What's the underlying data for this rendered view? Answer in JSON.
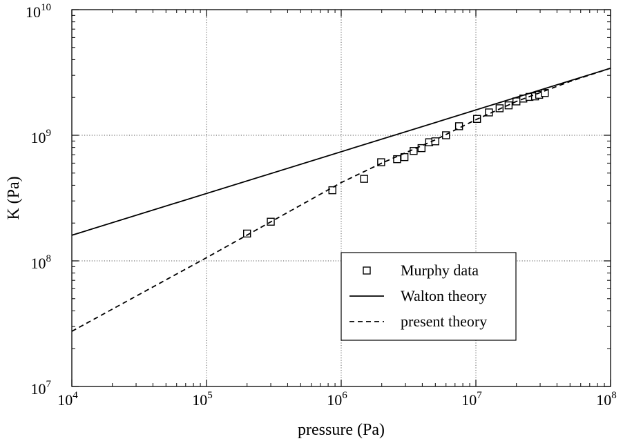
{
  "chart_data": {
    "type": "scatter",
    "xlabel": "pressure (Pa)",
    "ylabel": "K (Pa)",
    "x_scale": "log",
    "y_scale": "log",
    "xlim": [
      10000,
      100000000
    ],
    "ylim": [
      10000000,
      10000000000
    ],
    "x_ticks": [
      {
        "base": "10",
        "exp": "4"
      },
      {
        "base": "10",
        "exp": "5"
      },
      {
        "base": "10",
        "exp": "6"
      },
      {
        "base": "10",
        "exp": "7"
      },
      {
        "base": "10",
        "exp": "8"
      }
    ],
    "y_ticks": [
      {
        "base": "10",
        "exp": "7"
      },
      {
        "base": "10",
        "exp": "8"
      },
      {
        "base": "10",
        "exp": "9"
      },
      {
        "base": "10",
        "exp": "10"
      }
    ],
    "grid": true,
    "legend_position": "lower-right",
    "series": [
      {
        "name": "Murphy data",
        "type": "scatter",
        "marker": "open-square",
        "points": [
          [
            200000,
            165000000
          ],
          [
            300000,
            205000000
          ],
          [
            860000,
            365000000
          ],
          [
            1480000,
            450000000
          ],
          [
            1980000,
            610000000
          ],
          [
            2600000,
            645000000
          ],
          [
            2950000,
            670000000
          ],
          [
            3450000,
            750000000
          ],
          [
            3950000,
            790000000
          ],
          [
            4500000,
            880000000
          ],
          [
            5000000,
            895000000
          ],
          [
            6000000,
            1000000000
          ],
          [
            7500000,
            1180000000
          ],
          [
            10200000,
            1350000000
          ],
          [
            12500000,
            1520000000
          ],
          [
            15000000,
            1640000000
          ],
          [
            17500000,
            1730000000
          ],
          [
            20000000,
            1860000000
          ],
          [
            22500000,
            1960000000
          ],
          [
            25000000,
            2020000000
          ],
          [
            27500000,
            2040000000
          ],
          [
            29500000,
            2100000000
          ],
          [
            32500000,
            2170000000
          ]
        ]
      },
      {
        "name": "Walton theory",
        "type": "line",
        "dash": "solid",
        "points": [
          [
            10000,
            160000000
          ],
          [
            100000000,
            3420000000
          ]
        ]
      },
      {
        "name": "present theory",
        "type": "line",
        "dash": "dashed",
        "points": [
          [
            10000,
            27500000
          ],
          [
            100000,
            106000000
          ],
          [
            1000000,
            420000000
          ],
          [
            2000000,
            600000000
          ],
          [
            5000000,
            920000000
          ],
          [
            10000000,
            1330000000
          ],
          [
            20000000,
            1860000000
          ],
          [
            50000000,
            2680000000
          ],
          [
            100000000,
            3420000000
          ]
        ]
      }
    ]
  }
}
